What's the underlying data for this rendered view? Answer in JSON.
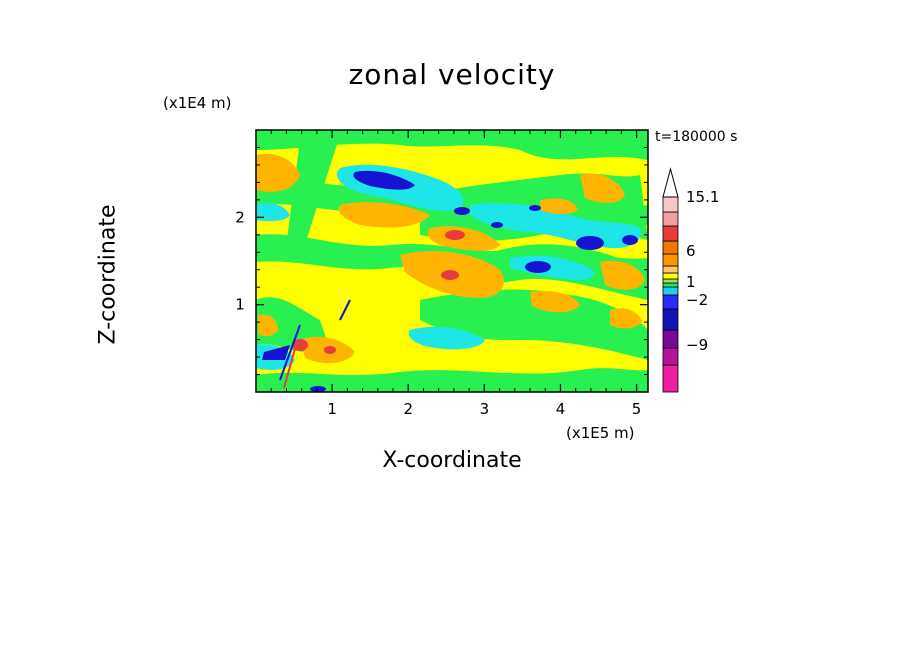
{
  "chart_data": {
    "type": "heatmap",
    "title": "zonal velocity",
    "xlabel": "X-coordinate",
    "ylabel": "Z-coordinate",
    "x_unit": "(×1E5 m)",
    "y_unit": "(×1E4 m)",
    "time_label": "t=180000 s",
    "xlim": [
      0,
      5.15
    ],
    "ylim": [
      0,
      3.0
    ],
    "x_ticks": [
      "1",
      "2",
      "3",
      "4",
      "5"
    ],
    "y_ticks": [
      "1",
      "2"
    ],
    "colorbar": {
      "levels": [
        -15,
        -12,
        -9,
        -6,
        -4,
        -2,
        -1,
        0,
        1,
        2,
        4,
        6,
        9,
        12,
        15.1
      ],
      "labels": [
        "15.1",
        "6",
        "1",
        "−2",
        "−9"
      ],
      "colors": [
        "#ee1ea0",
        "#b4149a",
        "#780896",
        "#1414b4",
        "#2a2aff",
        "#28c8f0",
        "#1ee678",
        "#a0e632",
        "#ffff00",
        "#ffc864",
        "#ff9600",
        "#f07800",
        "#e83c3c",
        "#f0a0a0",
        "#f8c8c8"
      ],
      "extend": "max"
    }
  },
  "title": "zonal velocity",
  "y_unit": "(x1E4 m)",
  "x_unit": "(x1E5 m)",
  "x_label": "X-coordinate",
  "y_label": "Z-coordinate",
  "time_label": "t=180000 s",
  "colors": {
    "green": "#28f050",
    "yellow": "#ffff00",
    "orange": "#ffb400",
    "cyan": "#1ee6e6",
    "blue": "#1414d2",
    "darkblue": "#0a0a78",
    "red": "#e83c3c"
  }
}
